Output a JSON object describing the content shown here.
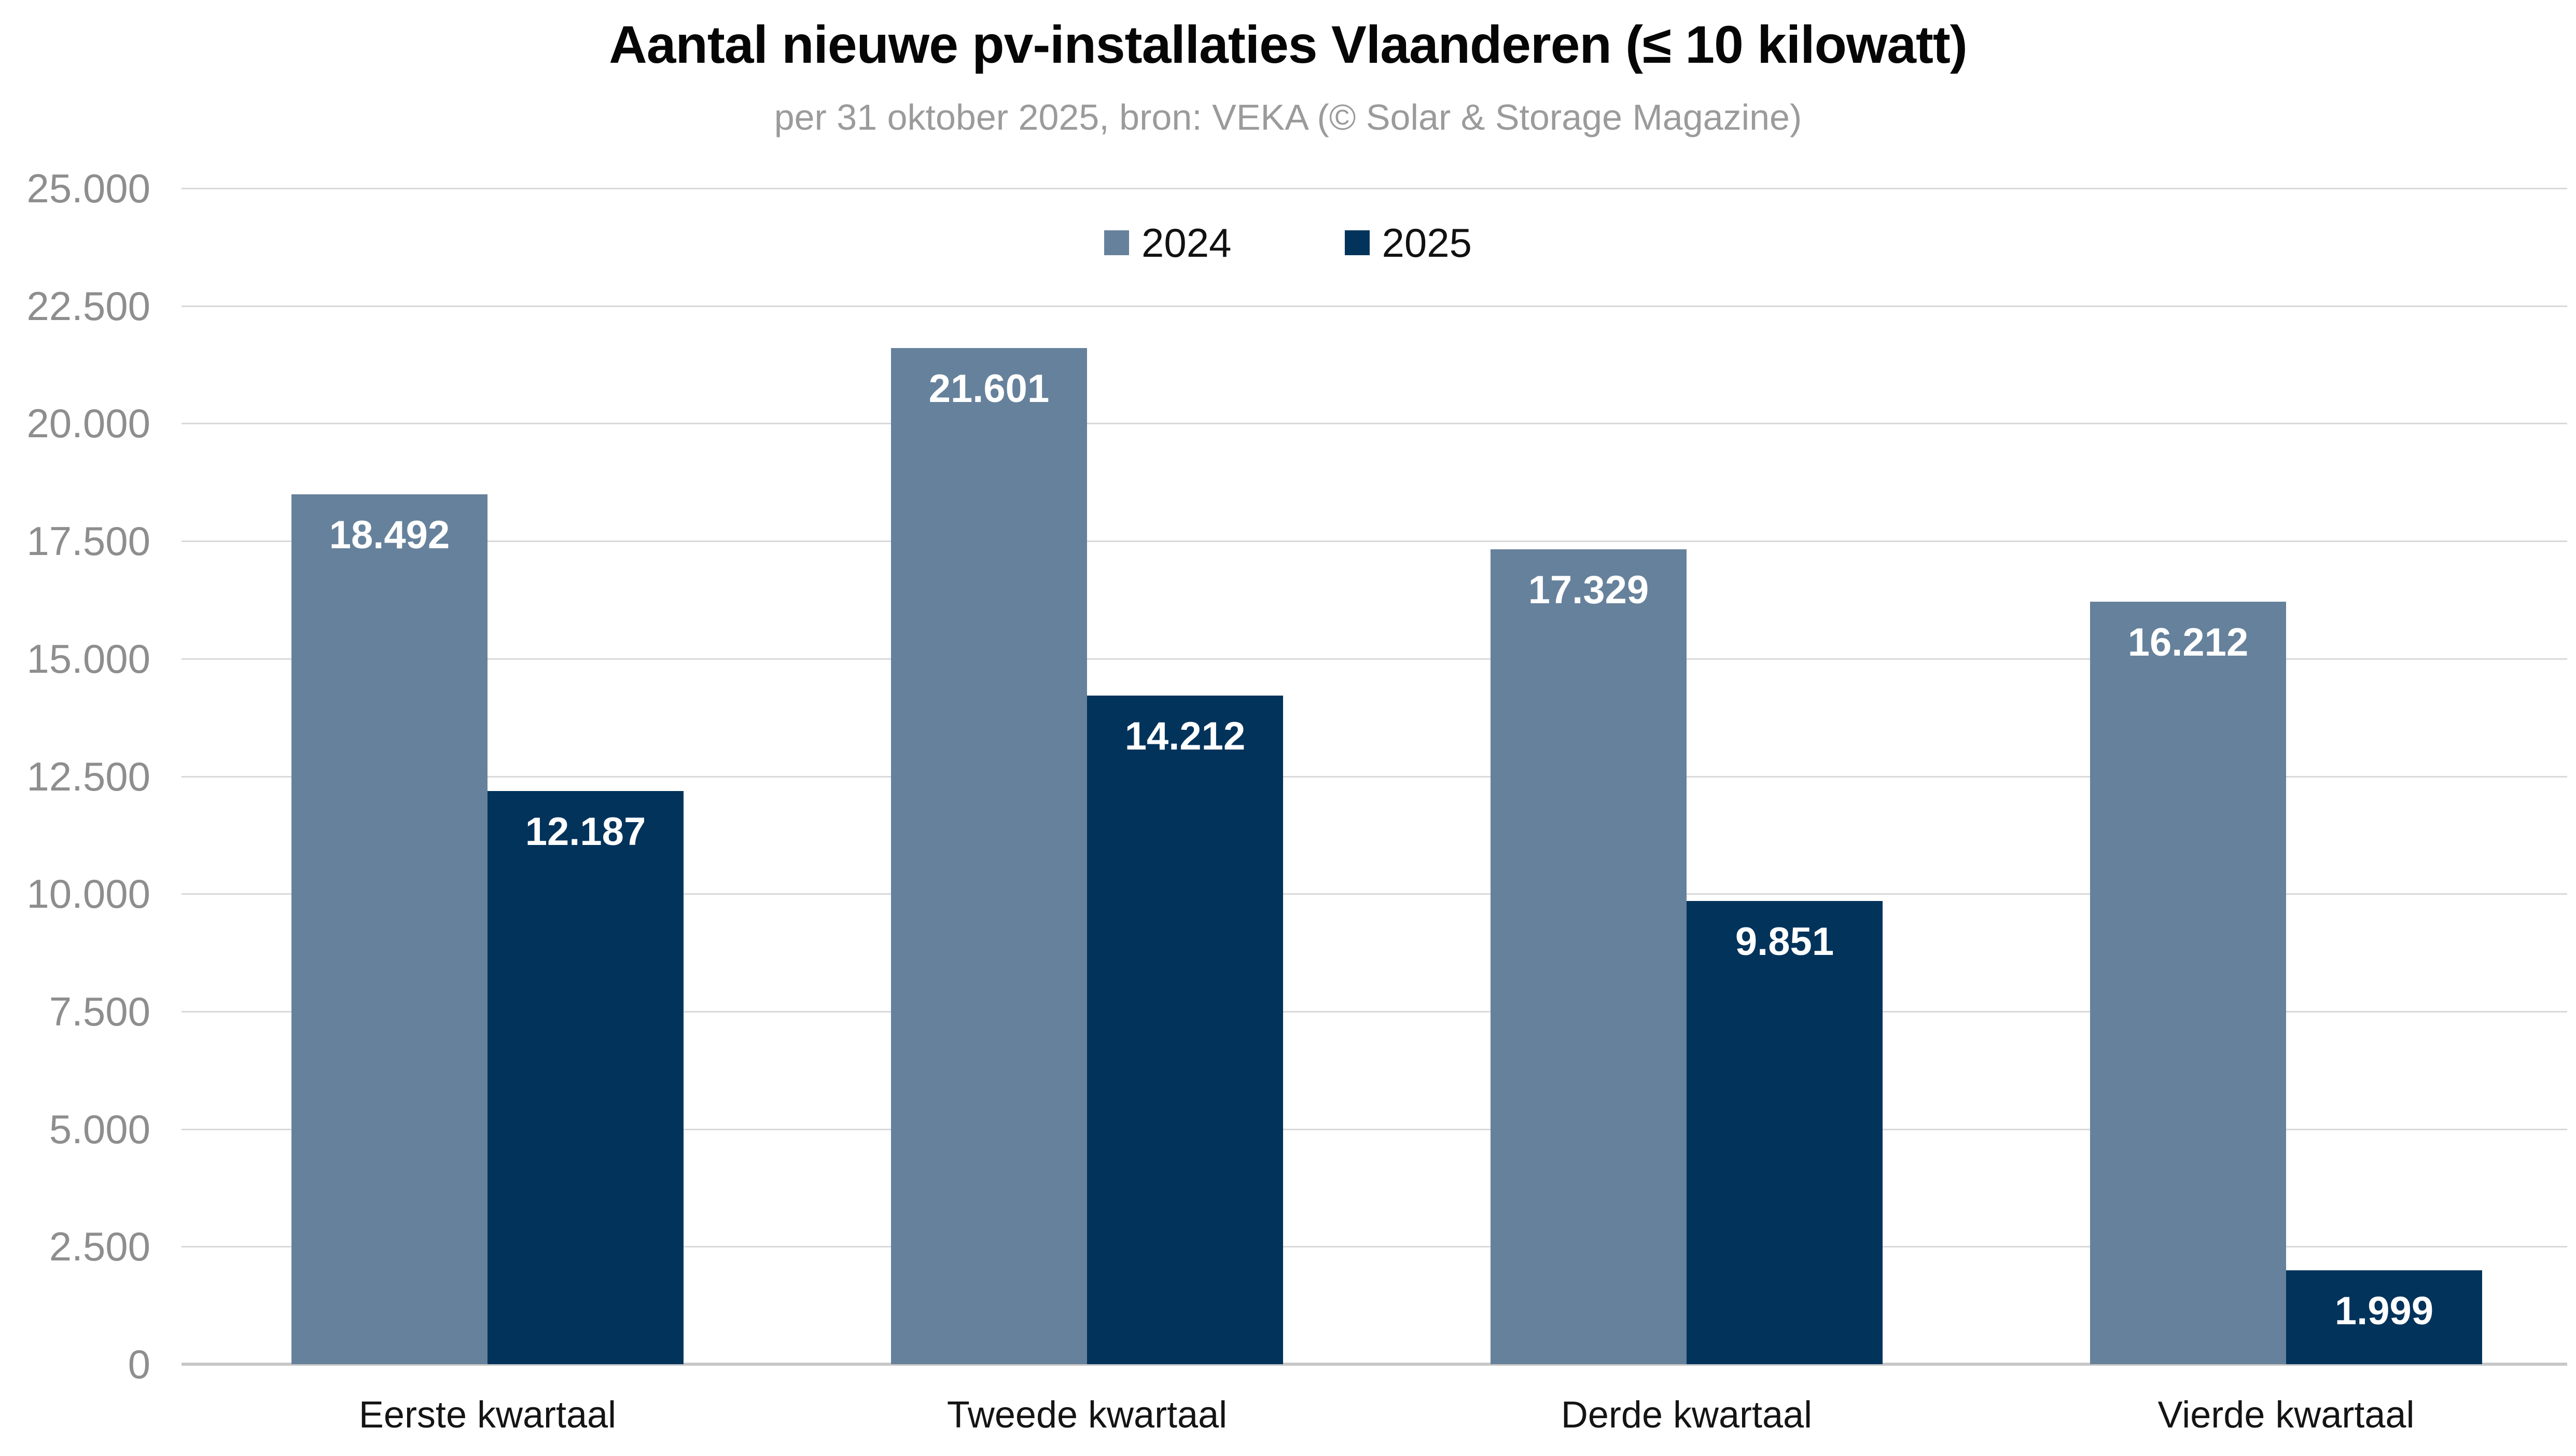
{
  "title": "Aantal nieuwe pv-installaties Vlaanderen (≤ 10 kilowatt)",
  "subtitle": "per 31 oktober 2025, bron: VEKA (© Solar & Storage Magazine)",
  "colors": {
    "series_2024": "#66819B",
    "series_2025": "#02335B",
    "gridline": "#D9D9D9",
    "baseline": "#C8C8C8",
    "y_tick_text": "#8E8E8E",
    "subtitle_text": "#9B9B9B",
    "x_label_text": "#141414",
    "bar_value_text": "#FFFFFF",
    "background": "#FFFFFF"
  },
  "legend": {
    "entries": [
      {
        "label": "2024",
        "color": "#66819B"
      },
      {
        "label": "2025",
        "color": "#02335B"
      }
    ]
  },
  "y_axis": {
    "tick_labels": [
      "25.000",
      "22.500",
      "20.000",
      "17.500",
      "15.000",
      "12.500",
      "10.000",
      "7.500",
      "5.000",
      "2.500",
      "0"
    ],
    "min": 0,
    "max": 25000,
    "step": 2500
  },
  "chart_data": {
    "type": "bar",
    "title": "Aantal nieuwe pv-installaties Vlaanderen (≤ 10 kilowatt)",
    "subtitle": "per 31 oktober 2025, bron: VEKA (© Solar & Storage Magazine)",
    "categories": [
      "Eerste kwartaal",
      "Tweede kwartaal",
      "Derde kwartaal",
      "Vierde kwartaal"
    ],
    "series": [
      {
        "name": "2024",
        "color": "#66819B",
        "values": [
          18492,
          21601,
          17329,
          16212
        ],
        "value_labels": [
          "18.492",
          "21.601",
          "17.329",
          "16.212"
        ]
      },
      {
        "name": "2025",
        "color": "#02335B",
        "values": [
          12187,
          14212,
          9851,
          1999
        ],
        "value_labels": [
          "12.187",
          "14.212",
          "9.851",
          "1.999"
        ]
      }
    ],
    "xlabel": "",
    "ylabel": "",
    "ylim": [
      0,
      25000
    ],
    "grid": true,
    "legend_position": "top-center"
  }
}
